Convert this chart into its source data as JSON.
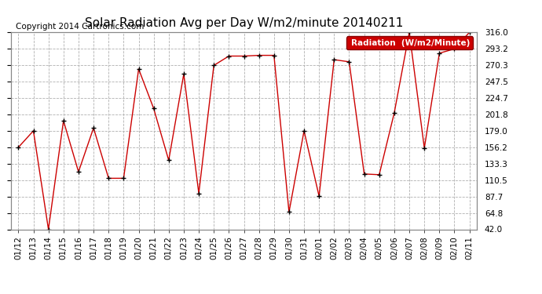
{
  "title": "Solar Radiation Avg per Day W/m2/minute 20140211",
  "copyright": "Copyright 2014 Cartronics.com",
  "legend_label": "Radiation  (W/m2/Minute)",
  "dates": [
    "01/12",
    "01/13",
    "01/14",
    "01/15",
    "01/16",
    "01/17",
    "01/18",
    "01/19",
    "01/20",
    "01/21",
    "01/22",
    "01/23",
    "01/24",
    "01/25",
    "01/26",
    "01/27",
    "01/28",
    "01/29",
    "01/30",
    "01/31",
    "02/01",
    "02/02",
    "02/03",
    "02/04",
    "02/05",
    "02/06",
    "02/07",
    "02/08",
    "02/09",
    "02/10",
    "02/11"
  ],
  "values": [
    156,
    179,
    42,
    193,
    122,
    183,
    113,
    113,
    265,
    210,
    138,
    258,
    92,
    270,
    283,
    283,
    284,
    284,
    66,
    179,
    88,
    278,
    275,
    119,
    118,
    204,
    316,
    155,
    287,
    293,
    316
  ],
  "line_color": "#cc0000",
  "marker_color": "#000000",
  "background_color": "#ffffff",
  "plot_bg_color": "#ffffff",
  "grid_color": "#b0b0b0",
  "legend_bg": "#cc0000",
  "legend_text_color": "#ffffff",
  "title_fontsize": 11,
  "copyright_fontsize": 7.5,
  "tick_fontsize": 7.5,
  "ylim": [
    42.0,
    316.0
  ],
  "yticks": [
    42.0,
    64.8,
    87.7,
    110.5,
    133.3,
    156.2,
    179.0,
    201.8,
    224.7,
    247.5,
    270.3,
    293.2,
    316.0
  ]
}
